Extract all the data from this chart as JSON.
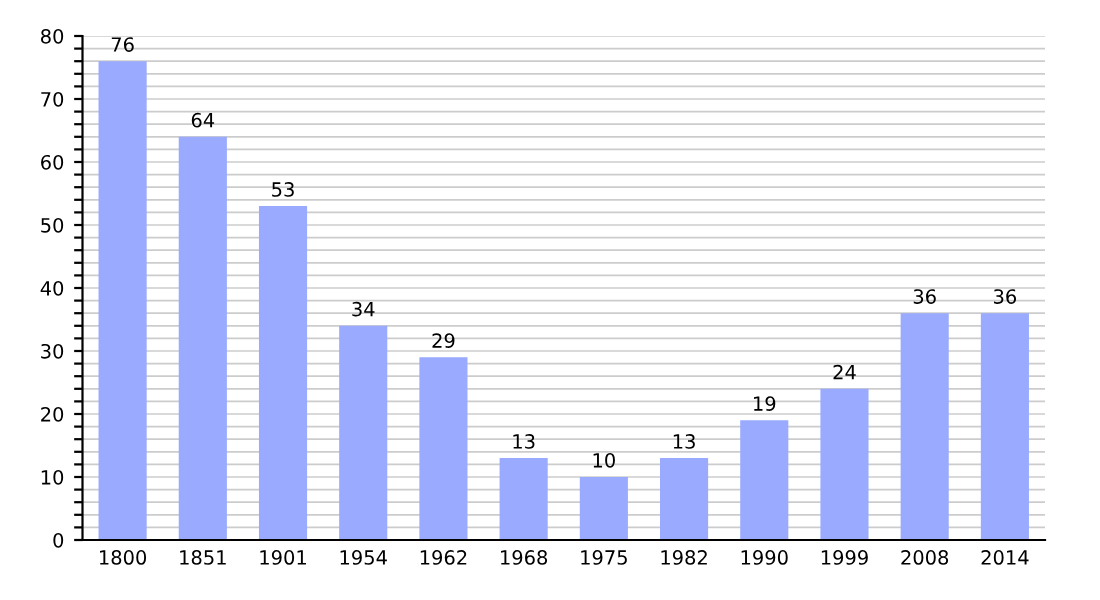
{
  "chart_data": {
    "type": "bar",
    "categories": [
      "1800",
      "1851",
      "1901",
      "1954",
      "1962",
      "1968",
      "1975",
      "1982",
      "1990",
      "1999",
      "2008",
      "2014"
    ],
    "values": [
      76,
      64,
      53,
      34,
      29,
      13,
      10,
      13,
      19,
      24,
      36,
      36
    ],
    "color": "#99aaff",
    "data_labels": true,
    "grid": "y",
    "ylim": [
      0,
      80
    ],
    "yticks": [
      0,
      {
        "value": 2,
        "label": null
      },
      {
        "value": 4,
        "label": null
      },
      {
        "value": 6,
        "label": null
      },
      {
        "value": 8,
        "label": null
      },
      10,
      {
        "value": 12,
        "label": null
      },
      {
        "value": 14,
        "label": null
      },
      {
        "value": 16,
        "label": null
      },
      {
        "value": 18,
        "label": null
      },
      20,
      {
        "value": 22,
        "label": null
      },
      {
        "value": 24,
        "label": null
      },
      {
        "value": 26,
        "label": null
      },
      {
        "value": 28,
        "label": null
      },
      30,
      {
        "value": 32,
        "label": null
      },
      {
        "value": 34,
        "label": null
      },
      {
        "value": 36,
        "label": null
      },
      {
        "value": 38,
        "label": null
      },
      40,
      {
        "value": 42,
        "label": null
      },
      {
        "value": 44,
        "label": null
      },
      {
        "value": 46,
        "label": null
      },
      {
        "value": 48,
        "label": null
      },
      50,
      {
        "value": 52,
        "label": null
      },
      {
        "value": 54,
        "label": null
      },
      {
        "value": 56,
        "label": null
      },
      {
        "value": 58,
        "label": null
      },
      60,
      {
        "value": 62,
        "label": null
      },
      {
        "value": 64,
        "label": null
      },
      {
        "value": 66,
        "label": null
      },
      {
        "value": 68,
        "label": null
      },
      70,
      {
        "value": 72,
        "label": null
      },
      {
        "value": 74,
        "label": null
      },
      {
        "value": 76,
        "label": null
      },
      {
        "value": 78,
        "label": null
      },
      80
    ]
  }
}
